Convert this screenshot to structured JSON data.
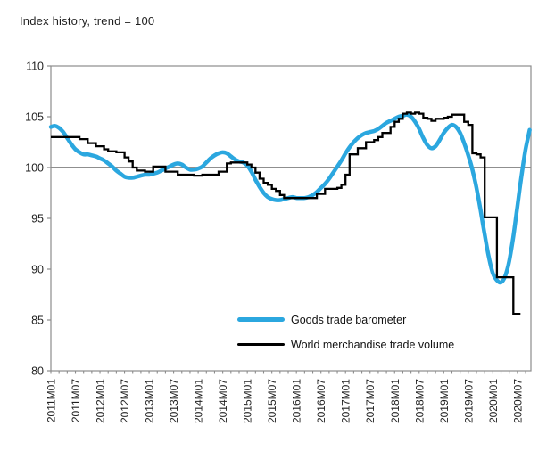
{
  "title": "Index history, trend = 100",
  "chart_data": {
    "type": "line",
    "title": "Index history, trend = 100",
    "x_unit": "month",
    "x_tick_labels": [
      "2011M01",
      "2011M07",
      "2012M01",
      "2012M07",
      "2013M01",
      "2013M07",
      "2014M01",
      "2014M07",
      "2015M01",
      "2015M07",
      "2016M01",
      "2016M07",
      "2017M01",
      "2017M07",
      "2018M01",
      "2018M07",
      "2019M01",
      "2019M07",
      "2020M01",
      "2020M07"
    ],
    "x_label_every_months": 6,
    "x_minor_tick_every_months": 2,
    "x_domain_months": 117.3,
    "ylim": [
      80,
      110
    ],
    "y_ticks": [
      110,
      105,
      100,
      95,
      90,
      85,
      80
    ],
    "reference_line_y": 100,
    "grid": "off",
    "legend_position": "inside-bottom-center",
    "series": [
      {
        "name": "Goods trade barometer",
        "color": "#2BA7DF",
        "line_style": "smooth-thick",
        "start_month": 0,
        "values": [
          104.0,
          104.1,
          103.9,
          103.5,
          102.9,
          102.3,
          101.8,
          101.5,
          101.3,
          101.3,
          101.2,
          101.1,
          100.9,
          100.7,
          100.4,
          100.1,
          99.7,
          99.4,
          99.1,
          99.0,
          99.0,
          99.1,
          99.2,
          99.3,
          99.3,
          99.4,
          99.5,
          99.7,
          99.9,
          100.1,
          100.3,
          100.4,
          100.3,
          100.0,
          99.8,
          99.8,
          99.9,
          100.1,
          100.5,
          100.9,
          101.2,
          101.4,
          101.5,
          101.4,
          101.1,
          100.8,
          100.6,
          100.5,
          100.2,
          99.6,
          98.8,
          98.1,
          97.5,
          97.1,
          96.9,
          96.8,
          96.8,
          96.9,
          97.0,
          97.1,
          97.0,
          97.0,
          97.0,
          97.1,
          97.3,
          97.6,
          98.0,
          98.4,
          98.9,
          99.5,
          100.1,
          100.7,
          101.4,
          102.0,
          102.5,
          102.9,
          103.2,
          103.4,
          103.5,
          103.6,
          103.8,
          104.1,
          104.4,
          104.6,
          104.8,
          105.0,
          105.1,
          105.2,
          105.0,
          104.5,
          103.8,
          102.9,
          102.2,
          101.9,
          102.1,
          102.7,
          103.4,
          103.9,
          104.2,
          104.0,
          103.4,
          102.4,
          101.2,
          99.8,
          98.0,
          95.8,
          93.4,
          91.2,
          89.6,
          88.9,
          88.7,
          89.3,
          90.8,
          93.2,
          96.2,
          99.2,
          101.8,
          103.7
        ]
      },
      {
        "name": "World merchandise trade volume",
        "color": "#000000",
        "line_style": "step-thin",
        "start_month": 0,
        "values": [
          103.0,
          103.0,
          103.0,
          103.0,
          103.0,
          103.0,
          103.0,
          102.8,
          102.8,
          102.4,
          102.4,
          102.1,
          102.1,
          101.8,
          101.6,
          101.6,
          101.5,
          101.5,
          101.0,
          100.6,
          100.0,
          99.7,
          99.7,
          99.6,
          99.6,
          100.1,
          100.1,
          100.1,
          99.6,
          99.6,
          99.6,
          99.3,
          99.3,
          99.3,
          99.3,
          99.2,
          99.2,
          99.3,
          99.3,
          99.3,
          99.3,
          99.6,
          99.6,
          100.4,
          100.5,
          100.5,
          100.5,
          100.5,
          100.3,
          100.0,
          99.5,
          98.9,
          98.5,
          98.3,
          97.9,
          97.7,
          97.3,
          97.0,
          97.0,
          97.0,
          97.0,
          97.0,
          97.0,
          97.0,
          97.0,
          97.4,
          97.4,
          97.9,
          97.9,
          97.9,
          98.0,
          98.3,
          99.3,
          101.3,
          101.3,
          101.9,
          101.9,
          102.5,
          102.5,
          102.7,
          103.0,
          103.4,
          103.4,
          104.0,
          104.5,
          104.8,
          105.3,
          105.4,
          105.3,
          105.4,
          105.3,
          104.9,
          104.8,
          104.6,
          104.8,
          104.8,
          104.9,
          105.0,
          105.2,
          105.2,
          105.2,
          104.5,
          104.2,
          101.4,
          101.3,
          101.0,
          95.1,
          95.1,
          95.1,
          89.2,
          89.2,
          89.2,
          89.2,
          85.6,
          85.6
        ]
      }
    ]
  },
  "colors": {
    "background": "#FFFFFF",
    "axis": "#8C8C8C",
    "reference_line": "#7F7F7F",
    "text": "#1F1F1F",
    "barometer_blue": "#2BA7DF",
    "volume_black": "#000000"
  }
}
